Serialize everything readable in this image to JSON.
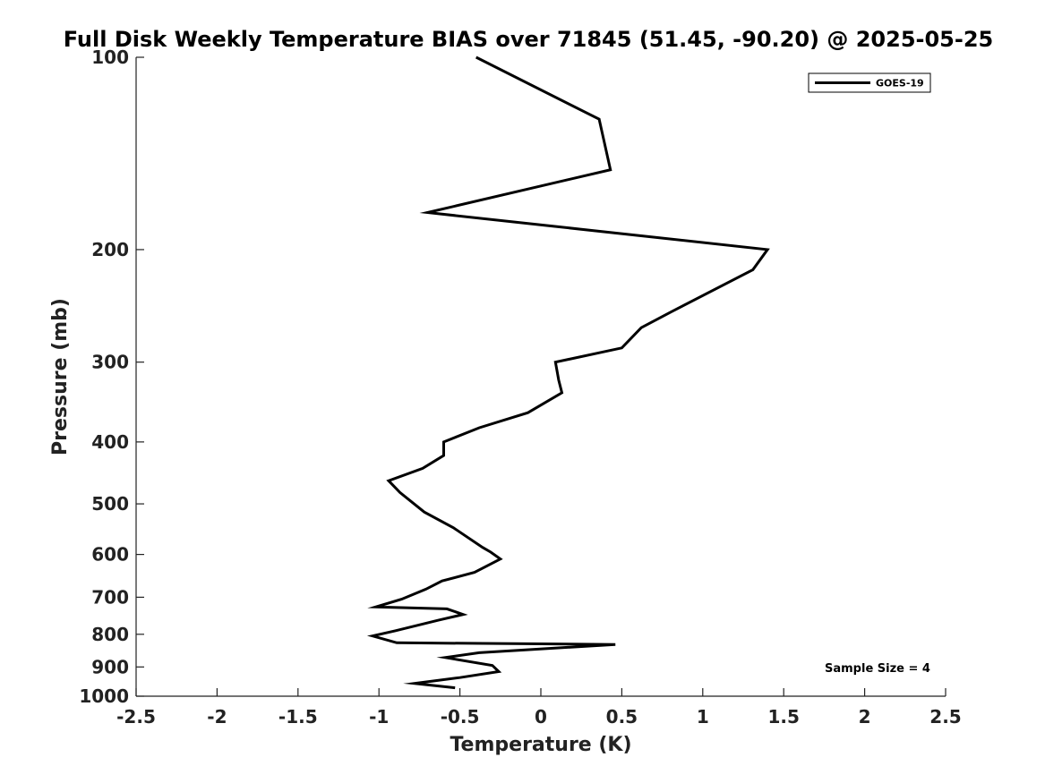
{
  "chart_data": {
    "type": "line",
    "title": "Full Disk Weekly Temperature BIAS over 71845 (51.45, -90.20) @ 2025-05-25",
    "xlabel": "Temperature (K)",
    "ylabel": "Pressure (mb)",
    "xlim": [
      -2.5,
      2.5
    ],
    "ylim": [
      100,
      1000
    ],
    "yscale": "log",
    "reversed_y": true,
    "x_ticks": [
      -2.5,
      -2,
      -1.5,
      -1,
      -0.5,
      0,
      0.5,
      1,
      1.5,
      2,
      2.5
    ],
    "x_tick_labels": [
      "-2.5",
      "-2",
      "-1.5",
      "-1",
      "-0.5",
      "0",
      "0.5",
      "1",
      "1.5",
      "2",
      "2.5"
    ],
    "y_ticks": [
      100,
      200,
      300,
      400,
      500,
      600,
      700,
      800,
      900,
      1000
    ],
    "y_tick_labels": [
      "100",
      "200",
      "300",
      "400",
      "500",
      "600",
      "700",
      "800",
      "900",
      "1000"
    ],
    "grid": false,
    "legend_position": "top-right",
    "annotation": "Sample Size = 4",
    "series": [
      {
        "name": "GOES-19",
        "color": "#000000",
        "points": [
          [
            -0.4,
            100
          ],
          [
            0.36,
            125
          ],
          [
            0.43,
            150
          ],
          [
            -0.7,
            175
          ],
          [
            1.4,
            200
          ],
          [
            1.31,
            215
          ],
          [
            0.81,
            250
          ],
          [
            0.62,
            265
          ],
          [
            0.5,
            285
          ],
          [
            0.09,
            300
          ],
          [
            0.11,
            320
          ],
          [
            0.13,
            335
          ],
          [
            -0.08,
            360
          ],
          [
            -0.38,
            380
          ],
          [
            -0.6,
            400
          ],
          [
            -0.6,
            420
          ],
          [
            -0.73,
            440
          ],
          [
            -0.94,
            460
          ],
          [
            -0.87,
            480
          ],
          [
            -0.72,
            515
          ],
          [
            -0.54,
            545
          ],
          [
            -0.36,
            585
          ],
          [
            -0.31,
            595
          ],
          [
            -0.25,
            610
          ],
          [
            -0.41,
            640
          ],
          [
            -0.61,
            660
          ],
          [
            -0.71,
            680
          ],
          [
            -0.86,
            705
          ],
          [
            -1.02,
            725
          ],
          [
            -0.58,
            730
          ],
          [
            -0.48,
            745
          ],
          [
            -0.63,
            760
          ],
          [
            -0.9,
            790
          ],
          [
            -1.04,
            805
          ],
          [
            -0.89,
            825
          ],
          [
            0.46,
            830
          ],
          [
            -0.38,
            855
          ],
          [
            -0.59,
            870
          ],
          [
            -0.3,
            895
          ],
          [
            -0.26,
            915
          ],
          [
            -0.5,
            935
          ],
          [
            -0.78,
            955
          ],
          [
            -0.53,
            970
          ]
        ]
      }
    ]
  }
}
